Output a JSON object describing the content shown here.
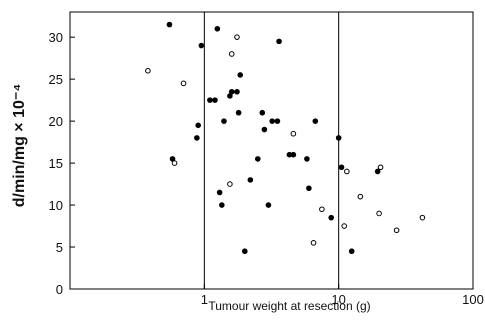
{
  "chart_data": {
    "type": "scatter",
    "title": "",
    "xlabel": "Tumour weight at resection (g)",
    "ylabel": "d/min/mg × 10⁻⁴",
    "x_scale": "log",
    "xlim": [
      0.1,
      100
    ],
    "ylim": [
      0,
      33
    ],
    "x_ticks": [
      1,
      10,
      100
    ],
    "x_tick_labels": [
      "1",
      "10",
      "100"
    ],
    "y_ticks": [
      0,
      5,
      10,
      15,
      20,
      25,
      30
    ],
    "y_tick_labels": [
      "0",
      "5",
      "10",
      "15",
      "20",
      "25",
      "30"
    ],
    "vertical_reference_lines": [
      1,
      10
    ],
    "grid": false,
    "legend": "none",
    "colors": {
      "filled": "#000000",
      "open_stroke": "#000000",
      "open_fill": "#ffffff"
    },
    "series": [
      {
        "marker": "filled-circle",
        "points": [
          [
            0.55,
            31.5
          ],
          [
            0.58,
            15.5
          ],
          [
            0.88,
            18.0
          ],
          [
            0.9,
            19.5
          ],
          [
            0.95,
            29.0
          ],
          [
            1.1,
            22.5
          ],
          [
            1.2,
            22.5
          ],
          [
            1.25,
            31.0
          ],
          [
            1.3,
            11.5
          ],
          [
            1.35,
            10.0
          ],
          [
            1.4,
            20.0
          ],
          [
            1.55,
            23.0
          ],
          [
            1.6,
            23.5
          ],
          [
            1.75,
            23.5
          ],
          [
            1.8,
            21.0
          ],
          [
            1.85,
            25.5
          ],
          [
            2.0,
            4.5
          ],
          [
            2.2,
            13.0
          ],
          [
            2.5,
            15.5
          ],
          [
            2.7,
            21.0
          ],
          [
            2.8,
            19.0
          ],
          [
            3.0,
            10.0
          ],
          [
            3.2,
            20.0
          ],
          [
            3.5,
            20.0
          ],
          [
            3.6,
            29.5
          ],
          [
            4.3,
            16.0
          ],
          [
            4.6,
            16.0
          ],
          [
            5.8,
            15.5
          ],
          [
            6.0,
            12.0
          ],
          [
            6.7,
            20.0
          ],
          [
            8.8,
            8.5
          ],
          [
            10.0,
            18.0
          ],
          [
            10.5,
            14.5
          ],
          [
            12.5,
            4.5
          ],
          [
            19.5,
            14.0
          ]
        ]
      },
      {
        "marker": "open-circle",
        "points": [
          [
            0.38,
            26.0
          ],
          [
            0.6,
            15.0
          ],
          [
            0.7,
            24.5
          ],
          [
            1.55,
            12.5
          ],
          [
            1.6,
            28.0
          ],
          [
            1.75,
            30.0
          ],
          [
            4.6,
            18.5
          ],
          [
            6.5,
            5.5
          ],
          [
            7.5,
            9.5
          ],
          [
            11.0,
            7.5
          ],
          [
            11.5,
            14.0
          ],
          [
            14.5,
            11.0
          ],
          [
            20.0,
            9.0
          ],
          [
            20.5,
            14.5
          ],
          [
            27.0,
            7.0
          ],
          [
            42.0,
            8.5
          ]
        ]
      }
    ]
  }
}
